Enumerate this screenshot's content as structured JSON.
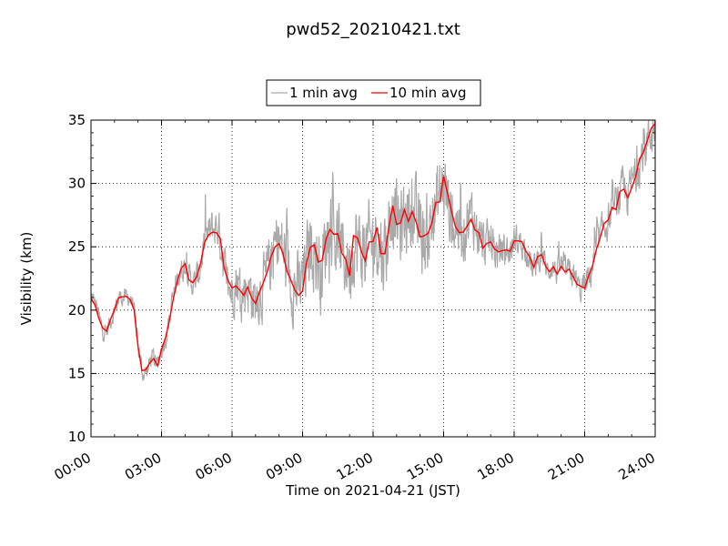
{
  "chart_data": {
    "type": "line",
    "title": "pwd52_20210421.txt",
    "xlabel": "Time on 2021-04-21 (JST)",
    "ylabel": "Visibility (km)",
    "xlim": [
      0,
      24
    ],
    "ylim": [
      10,
      35
    ],
    "x_tick_labels": [
      "00:00",
      "03:00",
      "06:00",
      "09:00",
      "12:00",
      "15:00",
      "18:00",
      "21:00",
      "24:00"
    ],
    "y_tick_labels": [
      "10",
      "15",
      "20",
      "25",
      "30",
      "35"
    ],
    "grid": true,
    "legend_position": "top-center",
    "x_units": "hours",
    "series": [
      {
        "name": "1 min avg",
        "color": "#a9a9a9",
        "noise_amplitude": [
          [
            0,
            1.2
          ],
          [
            2,
            1.0
          ],
          [
            4,
            1.5
          ],
          [
            6,
            3.0
          ],
          [
            7,
            3.5
          ],
          [
            9,
            4.5
          ],
          [
            12,
            5.0
          ],
          [
            15,
            4.5
          ],
          [
            17,
            2.5
          ],
          [
            18,
            1.8
          ],
          [
            20,
            1.5
          ],
          [
            21,
            1.8
          ],
          [
            23,
            2.5
          ],
          [
            24,
            3.0
          ]
        ]
      },
      {
        "name": "10 min avg",
        "color": "#ff0000",
        "x": [
          0.0,
          0.2,
          0.4,
          0.6,
          0.8,
          1.0,
          1.2,
          1.4,
          1.6,
          1.8,
          2.0,
          2.2,
          2.4,
          2.6,
          2.8,
          3.0,
          3.2,
          3.4,
          3.6,
          3.8,
          4.0,
          4.2,
          4.4,
          4.6,
          4.8,
          5.0,
          5.2,
          5.4,
          5.6,
          5.8,
          6.0,
          6.2,
          6.4,
          6.6,
          6.8,
          7.0,
          7.2,
          7.4,
          7.6,
          7.8,
          8.0,
          8.2,
          8.4,
          8.6,
          8.8,
          9.0,
          9.2,
          9.4,
          9.6,
          9.8,
          10.0,
          10.2,
          10.4,
          10.6,
          10.8,
          11.0,
          11.2,
          11.4,
          11.6,
          11.8,
          12.0,
          12.2,
          12.4,
          12.6,
          12.8,
          13.0,
          13.2,
          13.4,
          13.6,
          13.8,
          14.0,
          14.2,
          14.4,
          14.6,
          14.8,
          15.0,
          15.2,
          15.4,
          15.6,
          15.8,
          16.0,
          16.2,
          16.4,
          16.6,
          16.8,
          17.0,
          17.2,
          17.4,
          17.6,
          17.8,
          18.0,
          18.2,
          18.4,
          18.6,
          18.8,
          19.0,
          19.2,
          19.4,
          19.6,
          19.8,
          20.0,
          20.2,
          20.4,
          20.6,
          20.8,
          21.0,
          21.2,
          21.4,
          21.6,
          21.8,
          22.0,
          22.2,
          22.4,
          22.6,
          22.8,
          23.0,
          23.2,
          23.4,
          23.6,
          23.8,
          24.0
        ],
        "values": [
          21.0,
          20.5,
          19.0,
          18.0,
          19.0,
          20.0,
          21.0,
          21.0,
          21.0,
          20.5,
          17.0,
          15.0,
          15.2,
          16.5,
          15.5,
          17.0,
          18.0,
          20.0,
          22.0,
          23.0,
          23.5,
          22.5,
          22.0,
          23.0,
          25.0,
          26.0,
          26.5,
          26.5,
          24.5,
          22.0,
          21.5,
          22.5,
          21.0,
          22.0,
          21.5,
          20.5,
          21.5,
          22.0,
          23.5,
          25.0,
          25.5,
          24.5,
          23.0,
          22.0,
          21.5,
          22.0,
          24.0,
          25.5,
          24.0,
          23.0,
          25.5,
          27.0,
          25.5,
          25.0,
          24.0,
          23.5,
          25.5,
          25.0,
          24.5,
          25.0,
          25.5,
          26.0,
          24.5,
          25.5,
          28.5,
          27.0,
          26.5,
          27.5,
          28.0,
          27.0,
          26.0,
          25.5,
          26.5,
          27.5,
          29.0,
          30.0,
          28.5,
          26.5,
          27.0,
          26.0,
          27.0,
          27.5,
          26.5,
          25.5,
          25.0,
          25.5,
          24.5,
          24.5,
          25.0,
          24.5,
          25.5,
          25.5,
          25.0,
          24.5,
          23.0,
          24.0,
          24.5,
          23.0,
          23.5,
          23.0,
          23.5,
          23.0,
          23.0,
          22.5,
          21.5,
          22.0,
          22.5,
          24.0,
          25.5,
          26.5,
          27.0,
          28.0,
          28.5,
          29.5,
          29.0,
          30.0,
          31.0,
          32.0,
          33.0,
          34.0,
          34.5
        ]
      }
    ]
  }
}
